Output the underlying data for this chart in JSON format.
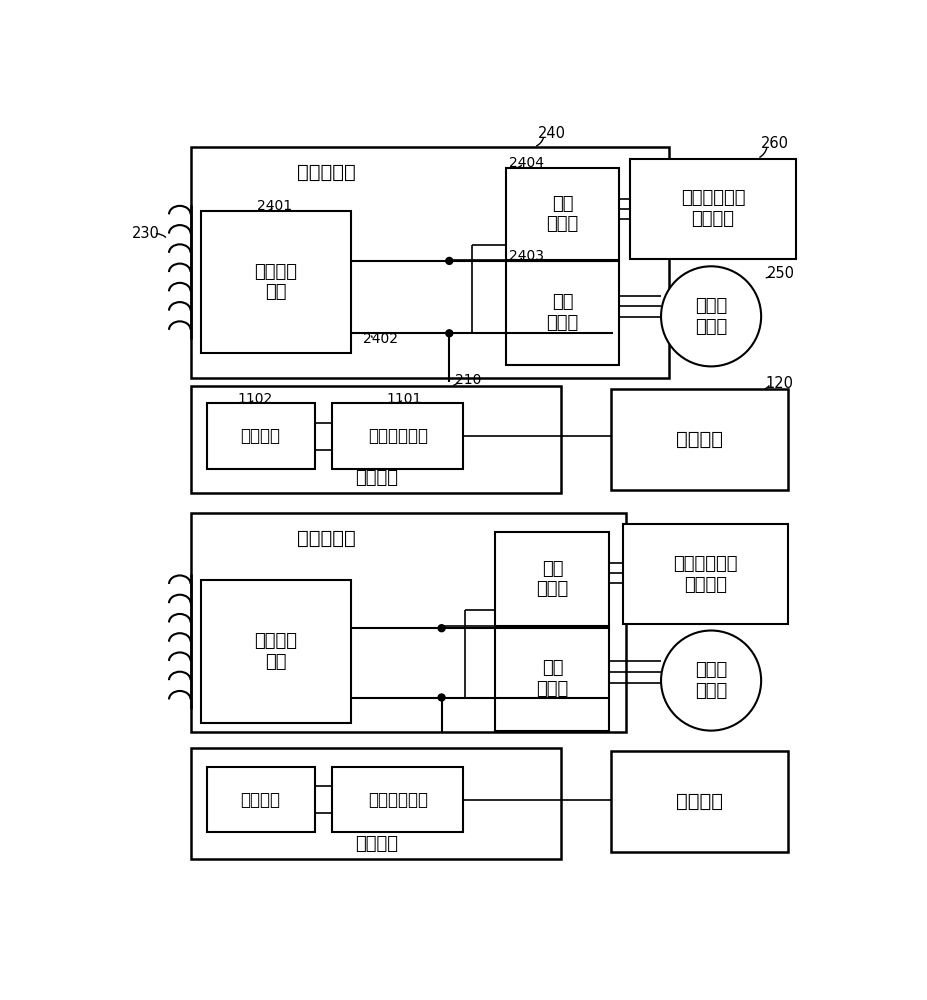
{
  "bg_color": "#ffffff",
  "text_qybls": "牵引变流器",
  "text_qyblq": "四象限整\n流器",
  "text_fznh": "辅助\n逆变器",
  "text_qynh": "牵引\n逆变器",
  "text_jldj": "交流牵\n引电机",
  "text_kzmk": "控制模块",
  "text_ncyj": "储能元件",
  "text_nlbhd": "能量变换电路",
  "text_ncmk": "储能模块",
  "text_fzsb": "空调、照明等\n辅助设备",
  "label_230": "230",
  "label_240": "240",
  "label_260": "260",
  "label_250": "250",
  "label_120": "120",
  "label_2401": "2401",
  "label_2402": "2402",
  "label_2403": "2403",
  "label_2404": "2404",
  "label_1101": "1101",
  "label_1102": "1102",
  "label_210": "210"
}
